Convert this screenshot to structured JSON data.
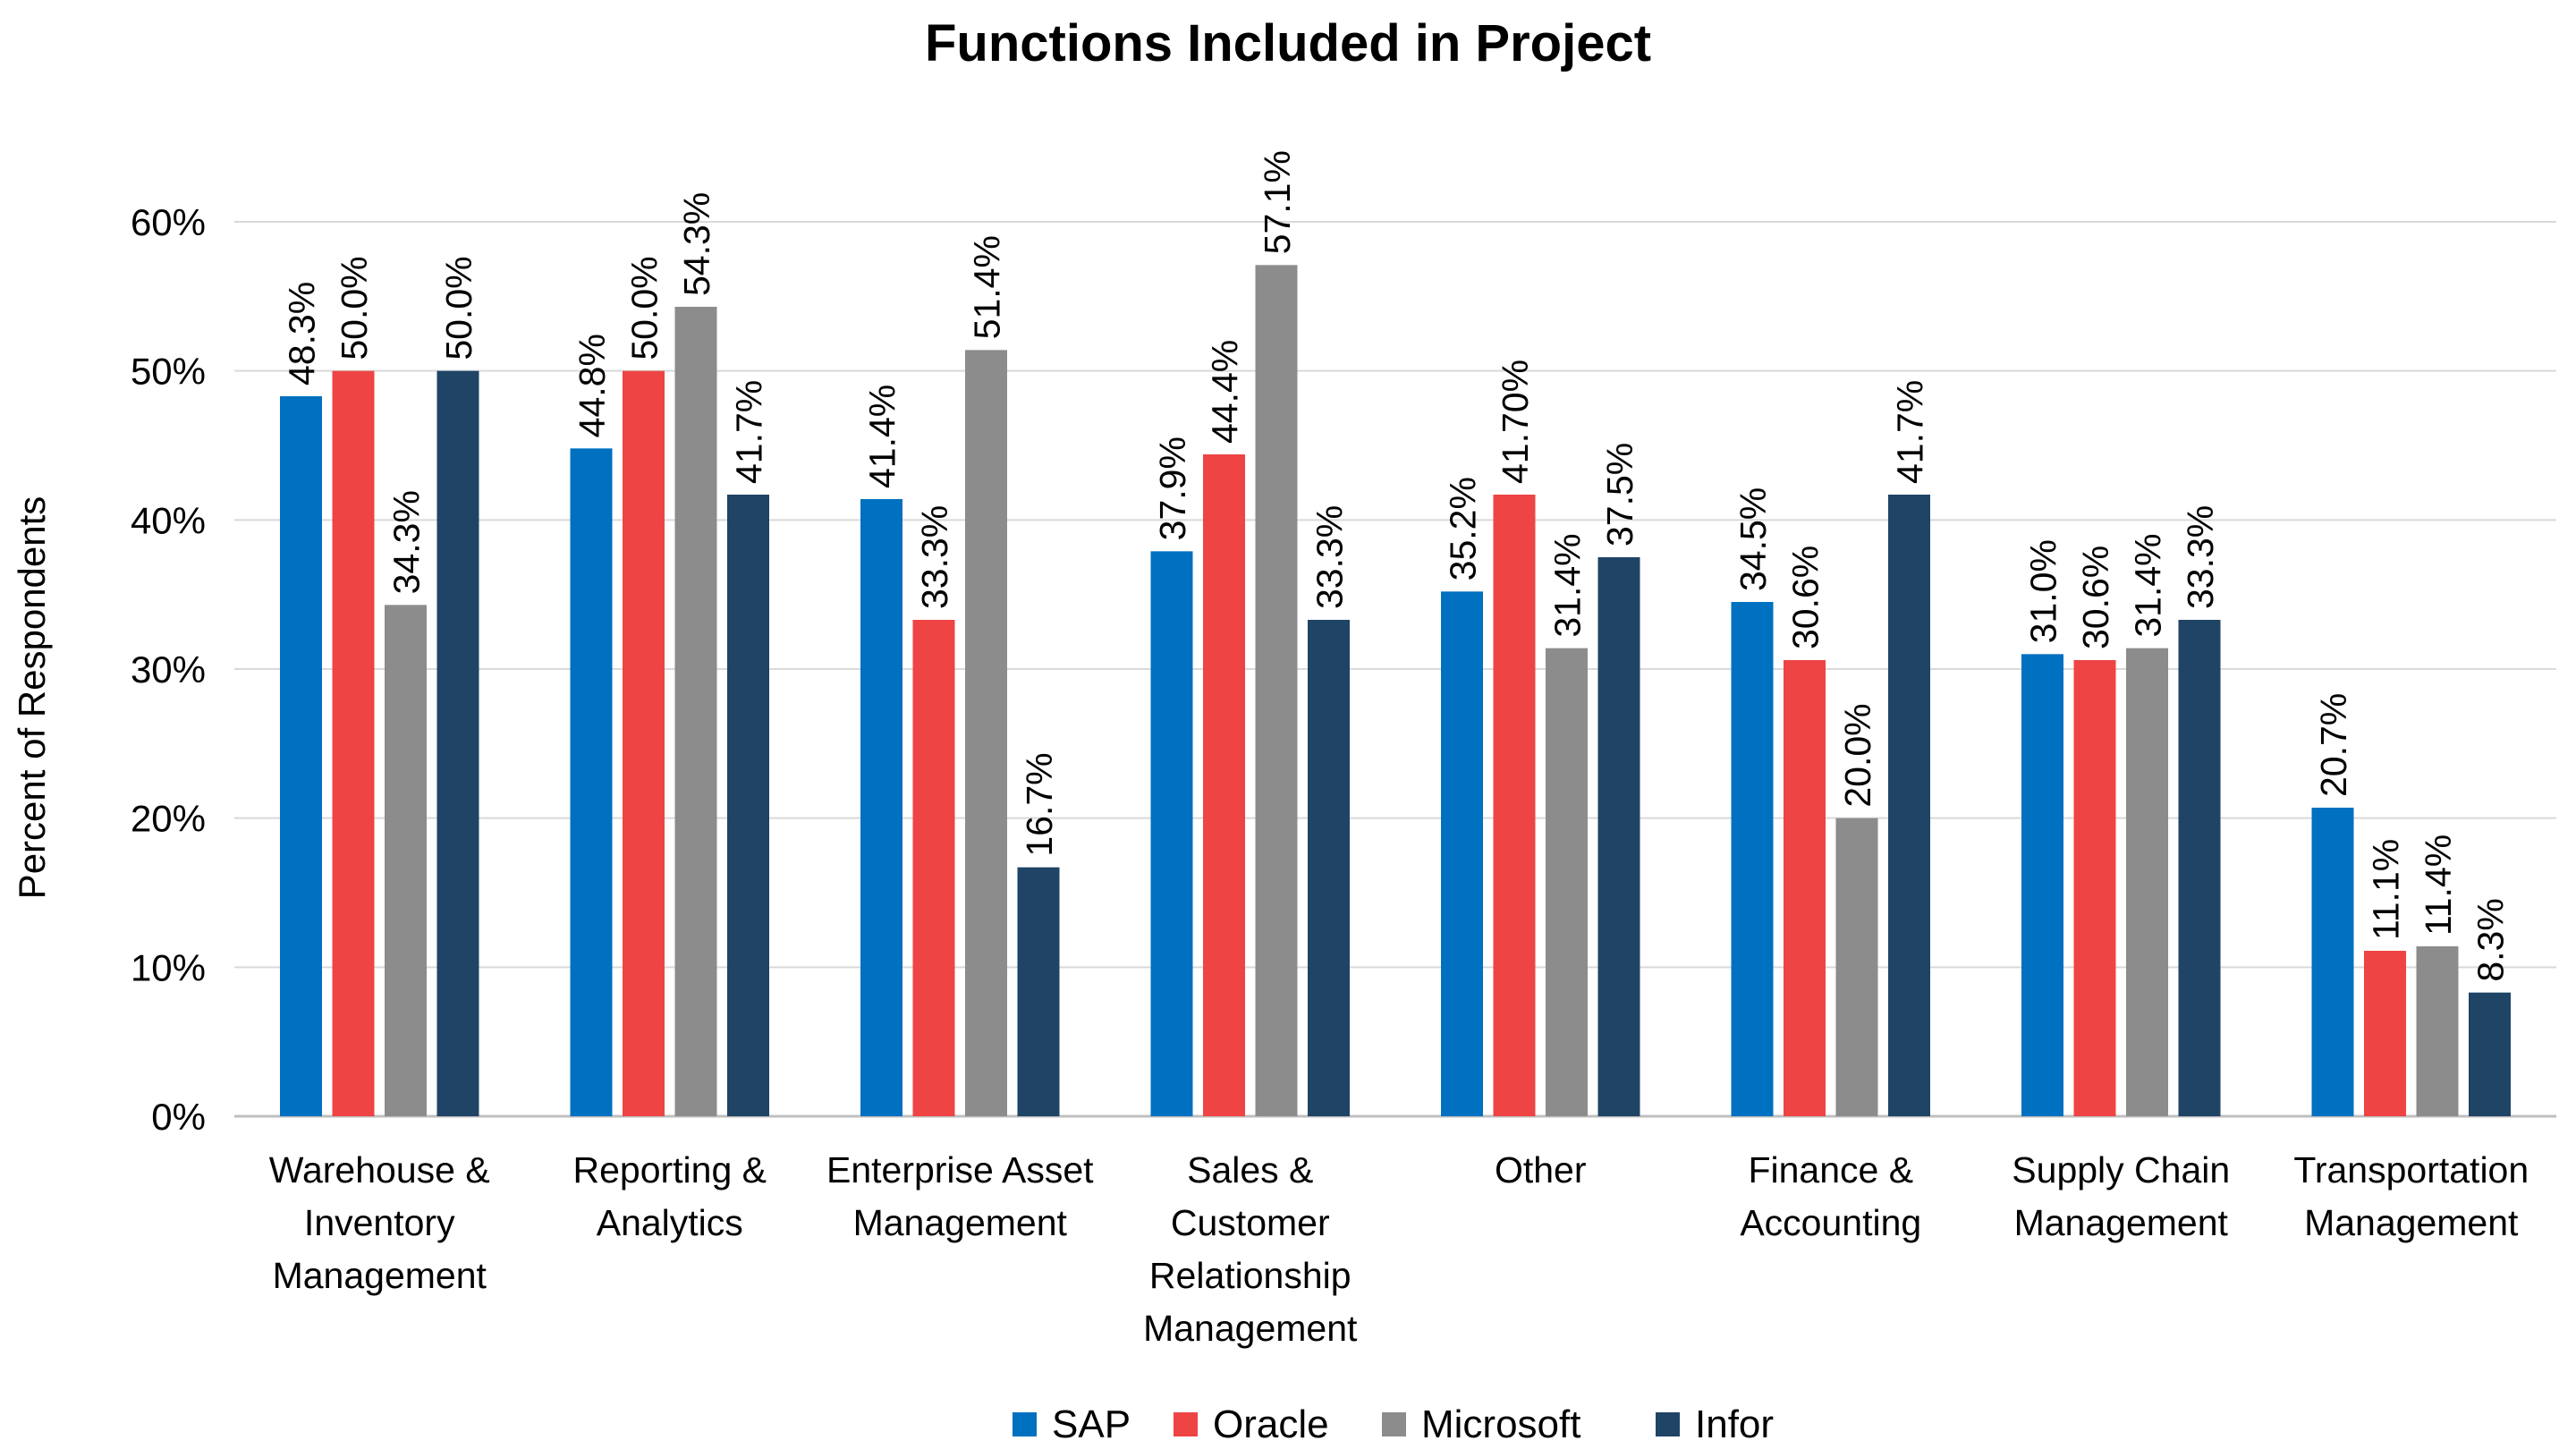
{
  "chart_data": {
    "type": "bar",
    "title": "Functions Included in Project",
    "ylabel": "Percent of Respondents",
    "xlabel": "",
    "ylim": [
      0,
      60
    ],
    "y_ticks": [
      "0%",
      "10%",
      "20%",
      "30%",
      "40%",
      "50%",
      "60%"
    ],
    "grid": true,
    "legend_position": "bottom",
    "categories": [
      [
        "Warehouse &",
        "Inventory",
        "Management"
      ],
      [
        "Reporting &",
        "Analytics"
      ],
      [
        "Enterprise Asset",
        "Management"
      ],
      [
        "Sales &",
        "Customer",
        "Relationship",
        "Management"
      ],
      [
        "Other"
      ],
      [
        "Finance &",
        "Accounting"
      ],
      [
        "Supply Chain",
        "Management"
      ],
      [
        "Transportation",
        "Management"
      ]
    ],
    "series": [
      {
        "name": "SAP",
        "color": "#0070C0",
        "values": [
          48.3,
          44.8,
          41.4,
          37.9,
          35.2,
          34.5,
          31.0,
          20.7
        ],
        "labels": [
          "48.3%",
          "44.8%",
          "41.4%",
          "37.9%",
          "35.2%",
          "34.5%",
          "31.0%",
          "20.7%"
        ]
      },
      {
        "name": "Oracle",
        "color": "#EE4444",
        "values": [
          50.0,
          50.0,
          33.3,
          44.4,
          41.7,
          30.6,
          30.6,
          11.1
        ],
        "labels": [
          "50.0%",
          "50.0%",
          "33.3%",
          "44.4%",
          "41.70%",
          "30.6%",
          "30.6%",
          "11.1%"
        ]
      },
      {
        "name": "Microsoft",
        "color": "#8C8C8C",
        "values": [
          34.3,
          54.3,
          51.4,
          57.1,
          31.4,
          20.0,
          31.4,
          11.4
        ],
        "labels": [
          "34.3%",
          "54.3%",
          "51.4%",
          "57.1%",
          "31.4%",
          "20.0%",
          "31.4%",
          "11.4%"
        ]
      },
      {
        "name": "Infor",
        "color": "#1F4466",
        "values": [
          50.0,
          41.7,
          16.7,
          33.3,
          37.5,
          41.7,
          33.3,
          8.3
        ],
        "labels": [
          "50.0%",
          "41.7%",
          "16.7%",
          "33.3%",
          "37.5%",
          "41.7%",
          "33.3%",
          "8.3%"
        ]
      }
    ]
  }
}
